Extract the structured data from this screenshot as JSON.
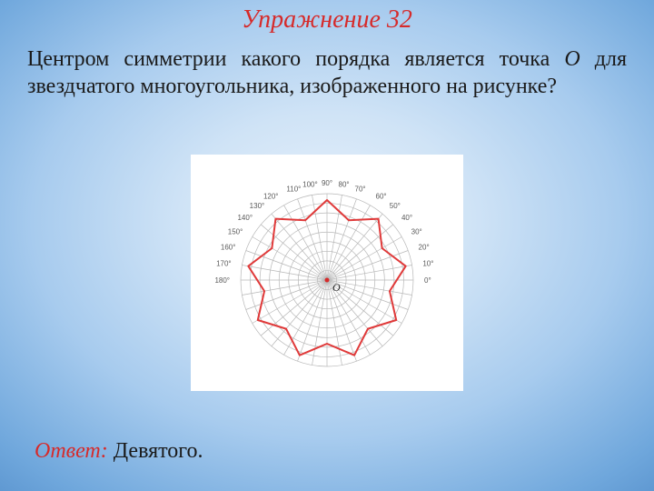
{
  "title": "Упражнение 32",
  "question": {
    "part1": "Центром симметрии какого порядка является точка ",
    "var_o": "O",
    "part2": " для звездчатого многоугольника, изображенного на рисунке?"
  },
  "answer": {
    "label": "Ответ:",
    "value": "Девятого."
  },
  "diagram": {
    "type": "polar-star",
    "background_color": "#ffffff",
    "grid_color": "#b8b8b8",
    "rings": 9,
    "radial_lines": 36,
    "outer_radius": 95,
    "star": {
      "color": "#e03a3a",
      "stroke_width": 2,
      "n_points": 9,
      "outer_r": 88,
      "inner_r": 70
    },
    "center_label": "O",
    "center_label_color": "#2a2a2a",
    "center_dot_color": "#d62a2a",
    "degree_labels": [
      {
        "deg": 0,
        "text": "0°"
      },
      {
        "deg": 10,
        "text": "10°"
      },
      {
        "deg": 20,
        "text": "20°"
      },
      {
        "deg": 30,
        "text": "30°"
      },
      {
        "deg": 40,
        "text": "40°"
      },
      {
        "deg": 50,
        "text": "50°"
      },
      {
        "deg": 60,
        "text": "60°"
      },
      {
        "deg": 70,
        "text": "70°"
      },
      {
        "deg": 80,
        "text": "80°"
      },
      {
        "deg": 90,
        "text": "90°"
      },
      {
        "deg": 100,
        "text": "100°"
      },
      {
        "deg": 110,
        "text": "110°"
      },
      {
        "deg": 120,
        "text": "120°"
      },
      {
        "deg": 130,
        "text": "130°"
      },
      {
        "deg": 140,
        "text": "140°"
      },
      {
        "deg": 150,
        "text": "150°"
      },
      {
        "deg": 160,
        "text": "160°"
      },
      {
        "deg": 170,
        "text": "170°"
      },
      {
        "deg": 180,
        "text": "180°"
      }
    ]
  }
}
